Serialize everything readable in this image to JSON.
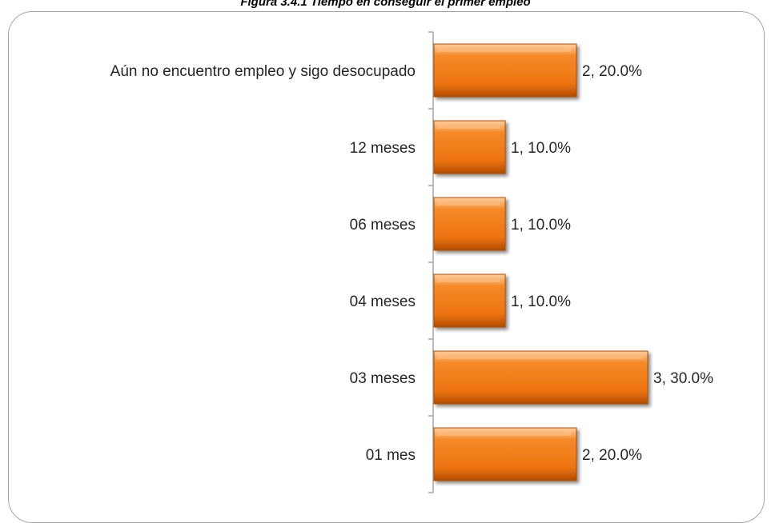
{
  "chart_data": {
    "type": "bar",
    "orientation": "horizontal",
    "title": "Figura 3.4.1 Tiempo en conseguir el primer empleo",
    "categories": [
      "Aún no encuentro empleo y sigo desocupado",
      "12 meses",
      "06 meses",
      "04 meses",
      "03 meses",
      "01 mes"
    ],
    "values": [
      2,
      1,
      1,
      1,
      3,
      2
    ],
    "percentages": [
      20.0,
      10.0,
      10.0,
      10.0,
      30.0,
      20.0
    ],
    "data_labels": [
      "2, 20.0%",
      "1, 10.0%",
      "1, 10.0%",
      "1, 10.0%",
      "3, 30.0%",
      "2, 20.0%"
    ],
    "xlim": [
      0,
      3.8
    ],
    "grid": false,
    "legend": "none",
    "colors": {
      "bar": "#f07a12",
      "bar_light": "#ffc08a",
      "bar_dark": "#b34f00",
      "axis": "#a6a6a6"
    }
  }
}
